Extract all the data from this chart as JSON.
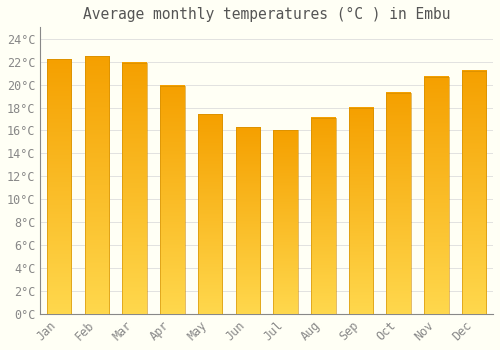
{
  "title": "Average monthly temperatures (°C ) in Embu",
  "months": [
    "Jan",
    "Feb",
    "Mar",
    "Apr",
    "May",
    "Jun",
    "Jul",
    "Aug",
    "Sep",
    "Oct",
    "Nov",
    "Dec"
  ],
  "values": [
    22.2,
    22.5,
    21.9,
    19.9,
    17.4,
    16.3,
    16.0,
    17.1,
    18.0,
    19.3,
    20.7,
    21.2
  ],
  "bar_color_bottom": "#FFD84D",
  "bar_color_top": "#F5A000",
  "background_color": "#FFFFF5",
  "grid_color": "#DDDDDD",
  "text_color": "#888888",
  "title_color": "#555555",
  "ylim": [
    0,
    25
  ],
  "ytick_step": 2,
  "title_fontsize": 10.5,
  "tick_fontsize": 8.5,
  "bar_width": 0.65
}
